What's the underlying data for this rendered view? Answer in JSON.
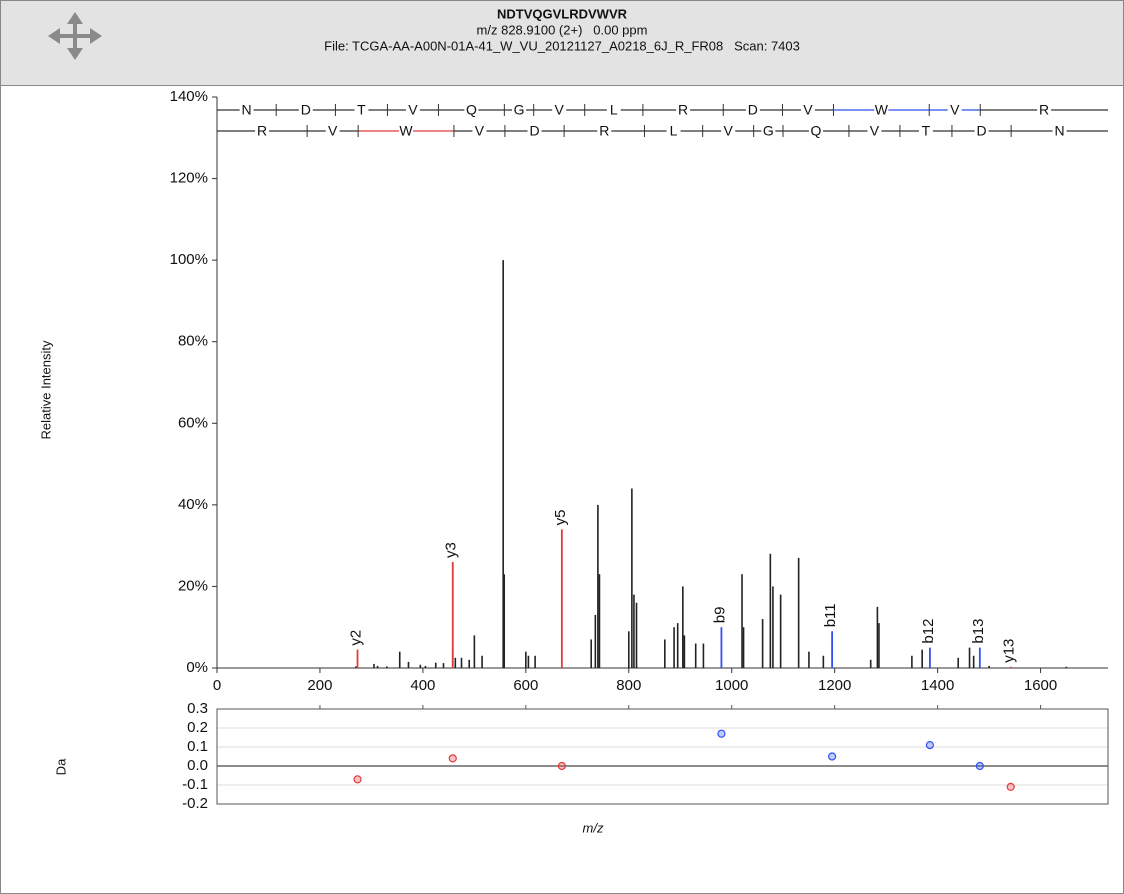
{
  "header": {
    "title": "NDTVQGVLRDVWVR",
    "precursor": "m/z 828.9100 (2+)   0.00 ppm",
    "file": "File: TCGA-AA-A00N-01A-41_W_VU_20121127_A0218_6J_R_FR08   Scan: 7403"
  },
  "chart_data": [
    {
      "type": "spectrum",
      "y_label": "Relative Intensity",
      "xlim": [
        0,
        1731
      ],
      "ylim": [
        0,
        140
      ],
      "xticks": [
        0,
        200,
        400,
        600,
        800,
        1000,
        1200,
        1400,
        1600
      ],
      "yticks": [
        {
          "value": 0,
          "label": "0%"
        },
        {
          "value": 20,
          "label": "20%"
        },
        {
          "value": 40,
          "label": "40%"
        },
        {
          "value": 60,
          "label": "60%"
        },
        {
          "value": 80,
          "label": "80%"
        },
        {
          "value": 100,
          "label": "100%"
        },
        {
          "value": 120,
          "label": "120%"
        },
        {
          "value": 140,
          "label": "140%"
        }
      ],
      "peaks": {
        "color": "#222222",
        "mz": [
          270,
          305,
          312,
          330,
          355,
          372,
          395,
          405,
          425,
          440,
          458,
          463,
          475,
          490,
          500,
          515,
          556,
          558,
          600,
          605,
          618,
          727,
          735,
          740,
          743,
          800,
          806,
          810,
          815,
          870,
          888,
          895,
          905,
          908,
          930,
          945,
          1020,
          1023,
          1060,
          1075,
          1080,
          1095,
          1130,
          1150,
          1178,
          1270,
          1283,
          1286,
          1350,
          1370,
          1440,
          1462,
          1470,
          1500,
          1650
        ],
        "intensity": [
          0.4,
          1,
          0.5,
          0.4,
          4,
          1.5,
          0.8,
          0.5,
          1.3,
          1.2,
          5,
          2.5,
          2.5,
          2,
          8,
          3,
          100,
          23,
          4,
          3,
          3,
          7,
          13,
          40,
          23,
          9,
          44,
          18,
          16,
          7,
          10,
          11,
          20,
          8,
          6,
          6,
          23,
          10,
          12,
          28,
          20,
          18,
          27,
          4,
          3,
          2,
          15,
          11,
          3,
          4.5,
          2.5,
          5,
          3,
          0.5,
          0.3
        ]
      },
      "annotations": [
        {
          "label": "y2",
          "mz": 273,
          "intensity": 4.5,
          "color": "#e23b3b"
        },
        {
          "label": "y3",
          "mz": 458,
          "intensity": 26,
          "color": "#e23b3b"
        },
        {
          "label": "y5",
          "mz": 670,
          "intensity": 34,
          "color": "#e23b3b"
        },
        {
          "label": "b9",
          "mz": 980,
          "intensity": 10,
          "color": "#2f52f0"
        },
        {
          "label": "b11",
          "mz": 1195,
          "intensity": 9,
          "color": "#2f52f0"
        },
        {
          "label": "b12",
          "mz": 1385,
          "intensity": 5,
          "color": "#2f52f0"
        },
        {
          "label": "b13",
          "mz": 1482,
          "intensity": 5,
          "color": "#2f52f0"
        },
        {
          "label": "y13",
          "mz": 1542,
          "intensity": 0.3,
          "color": "#e23b3b"
        }
      ],
      "ladder": [
        {
          "residues": [
            "N",
            "D",
            "T",
            "V",
            "Q",
            "G",
            "V",
            "L",
            "R",
            "D",
            "V",
            "W",
            "V",
            "R"
          ],
          "breaks": [
            115.05,
            230.08,
            331.13,
            430.2,
            558.26,
            615.28,
            714.35,
            827.43,
            983.53,
            1098.56,
            1197.63,
            1383.71,
            1482.78
          ],
          "color": "#333333",
          "highlight": [
            11,
            12
          ],
          "highlight_color": "#2f52f0"
        },
        {
          "residues": [
            "R",
            "V",
            "W",
            "V",
            "D",
            "R",
            "L",
            "V",
            "G",
            "Q",
            "V",
            "T",
            "D",
            "N"
          ],
          "breaks": [
            175.12,
            274.19,
            460.27,
            559.34,
            674.37,
            830.47,
            943.55,
            1042.62,
            1099.64,
            1227.7,
            1326.77,
            1427.82,
            1542.85
          ],
          "color": "#333333",
          "highlight": [
            2
          ],
          "highlight_color": "#e23b3b"
        }
      ]
    },
    {
      "type": "scatter",
      "y_label": "Da",
      "x_label": "m/z",
      "xlim": [
        0,
        1731
      ],
      "ylim": [
        -0.2,
        0.3
      ],
      "xticks": [
        200,
        400,
        600,
        800,
        1000,
        1200,
        1400,
        1600
      ],
      "yticks": [
        0.3,
        0.2,
        0.1,
        {
          "value": 0,
          "label": "0.0"
        },
        -0.1,
        -0.2
      ],
      "x": [
        273,
        458,
        670,
        980,
        1195,
        1385,
        1482,
        1542
      ],
      "values": [
        -0.07,
        0.04,
        0.0,
        0.17,
        0.05,
        0.11,
        0.0,
        -0.11
      ],
      "colors": [
        "#e23b3b",
        "#e23b3b",
        "#e23b3b",
        "#2f52f0",
        "#2f52f0",
        "#2f52f0",
        "#2f52f0",
        "#e23b3b"
      ]
    }
  ]
}
